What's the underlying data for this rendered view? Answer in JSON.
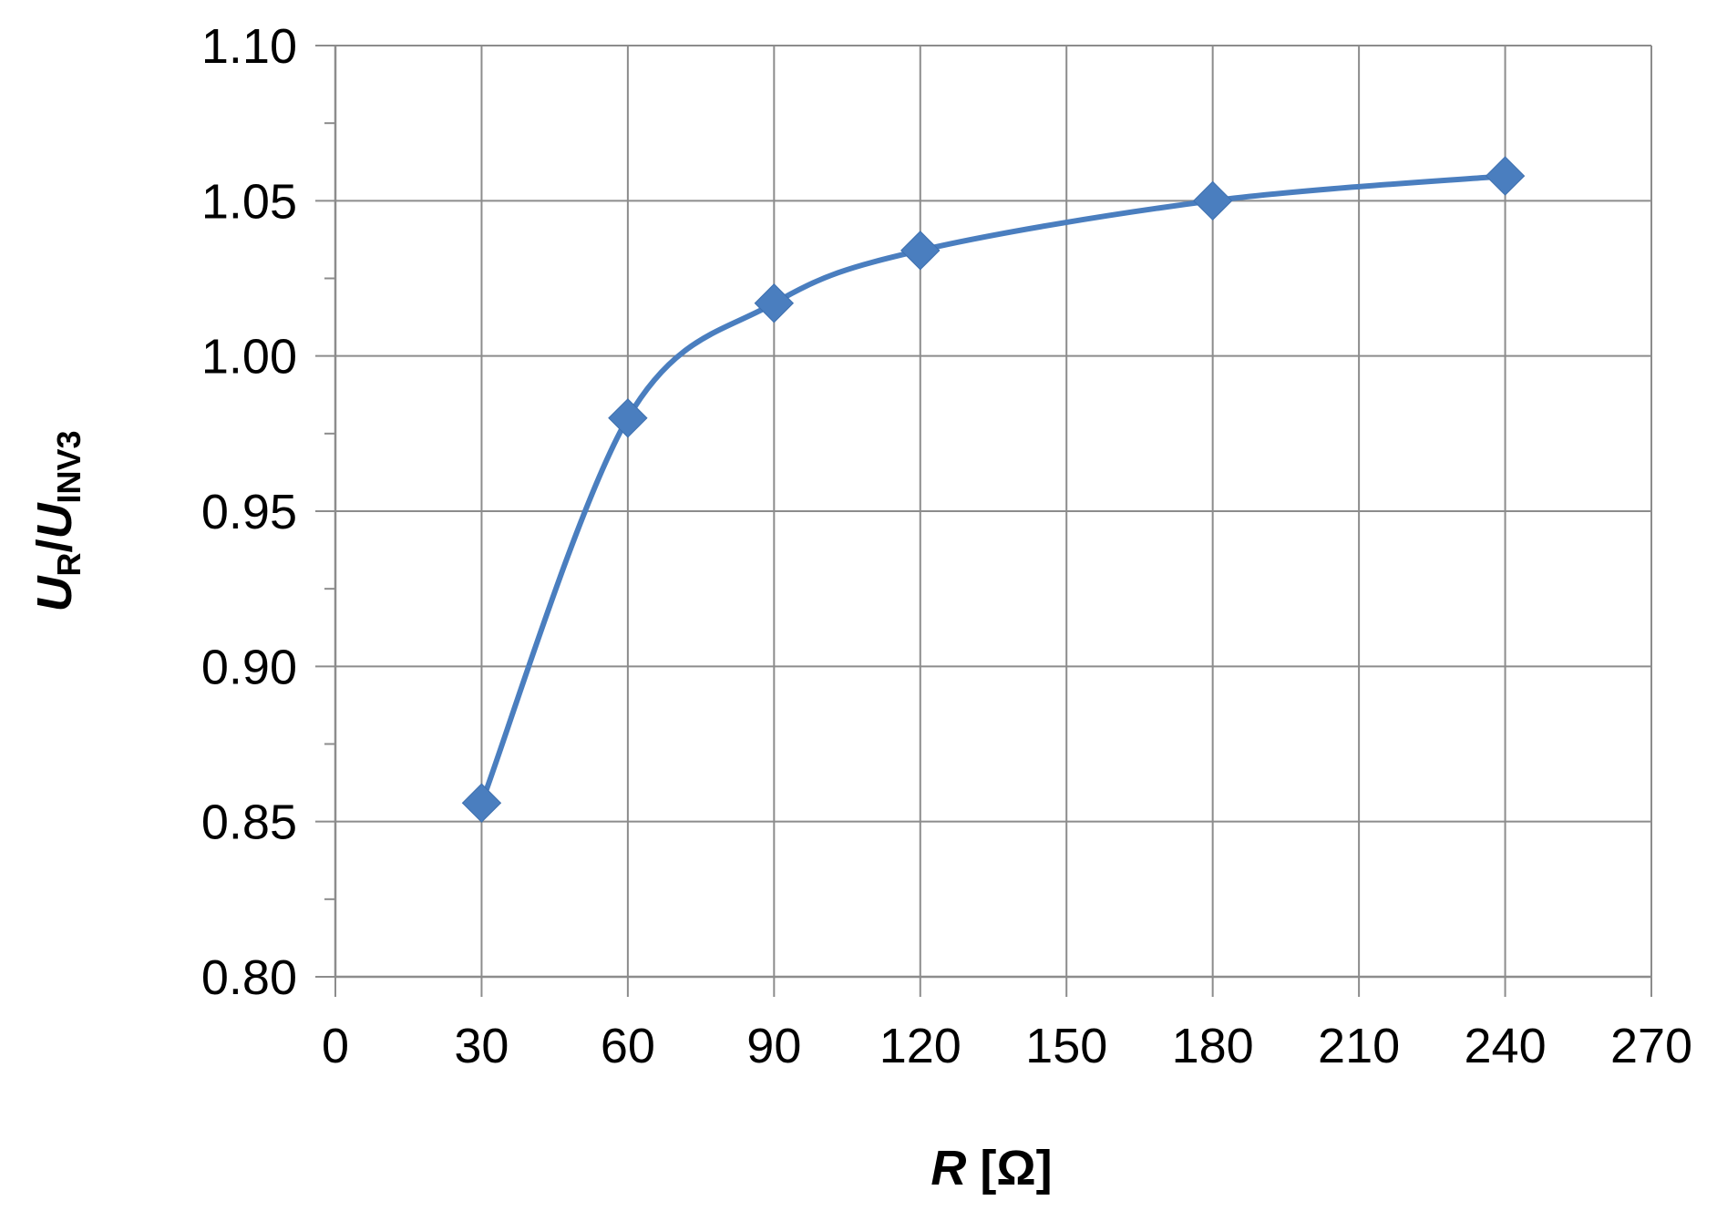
{
  "chart_data": {
    "type": "line",
    "title": "",
    "xlabel": {
      "symbol": "R",
      "unit": " [Ω]"
    },
    "ylabel": {
      "u1": "U",
      "sub1": "R",
      "slash": "/",
      "u2": "U",
      "sub2": "INV3"
    },
    "xlim": [
      0,
      270
    ],
    "ylim": [
      0.8,
      1.1
    ],
    "x_ticks": [
      0,
      30,
      60,
      90,
      120,
      150,
      180,
      210,
      240,
      270
    ],
    "x_tick_labels": [
      "0",
      "30",
      "60",
      "90",
      "120",
      "150",
      "180",
      "210",
      "240",
      "270"
    ],
    "y_ticks": [
      0.8,
      0.85,
      0.9,
      0.95,
      1.0,
      1.05,
      1.1
    ],
    "y_tick_labels": [
      "0.80",
      "0.85",
      "0.90",
      "0.95",
      "1.00",
      "1.05",
      "1.10"
    ],
    "y_minor_ticks": [
      0.825,
      0.875,
      0.925,
      0.975,
      1.025,
      1.075
    ],
    "grid": true,
    "legend": "none",
    "line_style": "smooth",
    "marker": "diamond",
    "series": [
      {
        "x": [
          30,
          60,
          90,
          120,
          180,
          240
        ],
        "y": [
          0.856,
          0.98,
          1.017,
          1.034,
          1.05,
          1.058
        ],
        "color": "#4a7ebf"
      }
    ]
  }
}
